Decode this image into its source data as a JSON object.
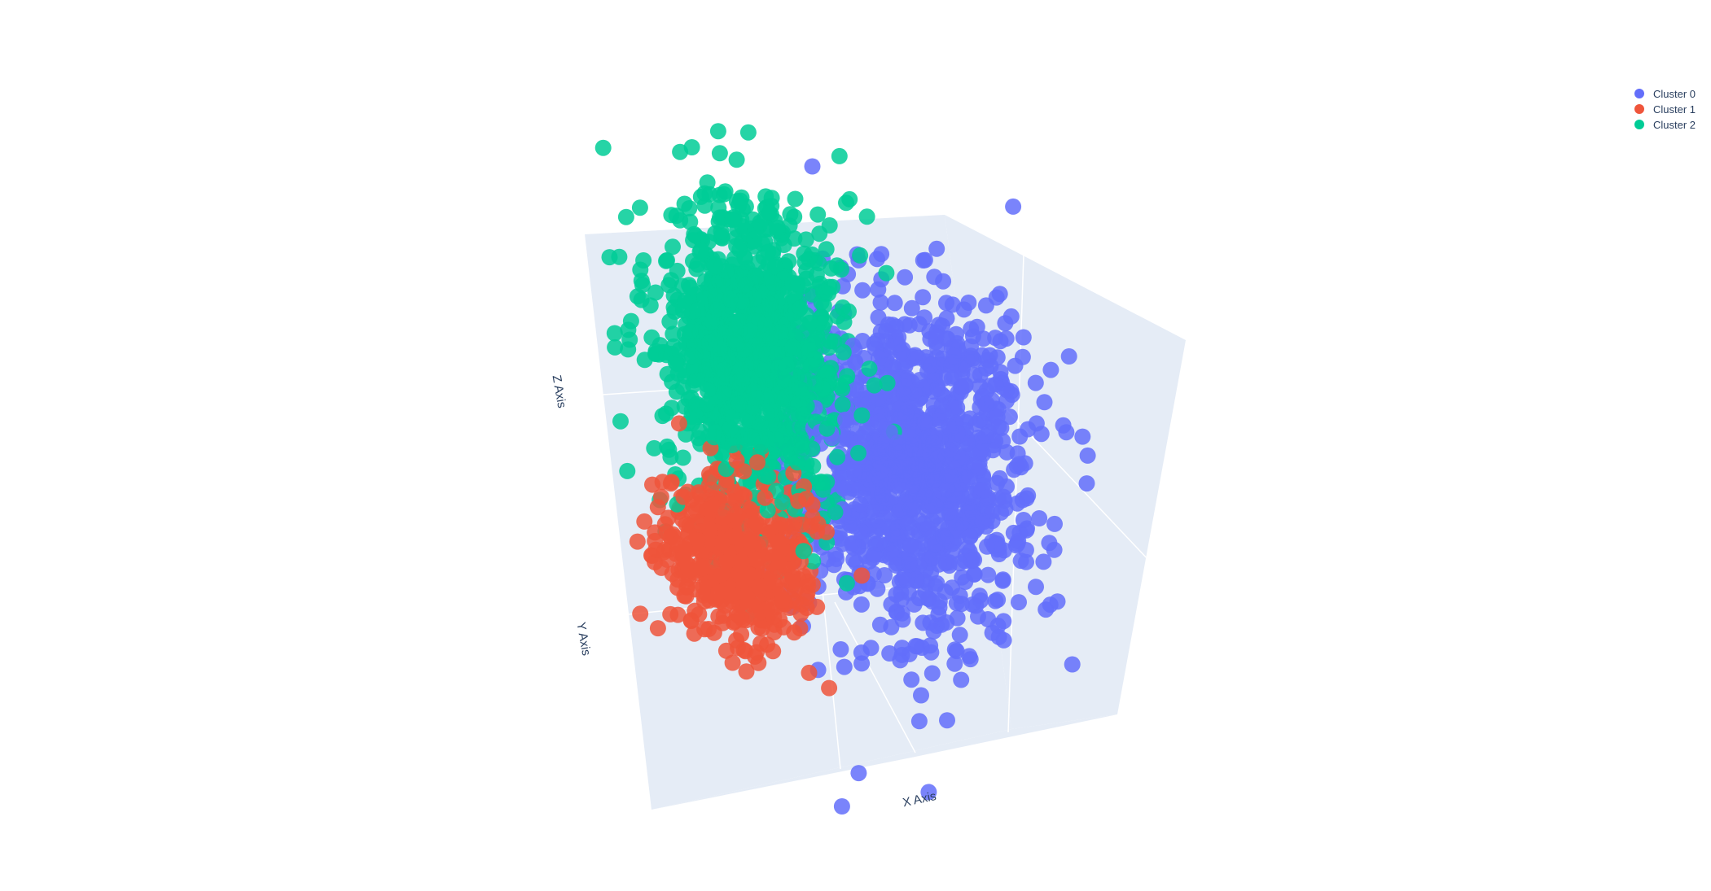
{
  "chart_data": {
    "type": "scatter3d",
    "title": "",
    "axes": {
      "x": {
        "label": "X Axis"
      },
      "y": {
        "label": "Y Axis"
      },
      "z": {
        "label": "Z Axis"
      }
    },
    "grid": true,
    "legend_position": "top-right",
    "background_color": "#e5ecf6",
    "gridline_color": "#ffffff",
    "series": [
      {
        "name": "Cluster 0",
        "color": "#636efa",
        "count": 1200,
        "center": [
          1.0,
          0.5,
          0.0
        ],
        "spread": [
          0.55,
          0.45,
          0.75
        ]
      },
      {
        "name": "Cluster 1",
        "color": "#ef553b",
        "count": 600,
        "center": [
          -0.9,
          -0.3,
          -0.9
        ],
        "spread": [
          0.35,
          0.3,
          0.35
        ]
      },
      {
        "name": "Cluster 2",
        "color": "#00cc96",
        "count": 1100,
        "center": [
          -0.6,
          0.2,
          0.9
        ],
        "spread": [
          0.4,
          0.35,
          0.7
        ]
      }
    ]
  }
}
